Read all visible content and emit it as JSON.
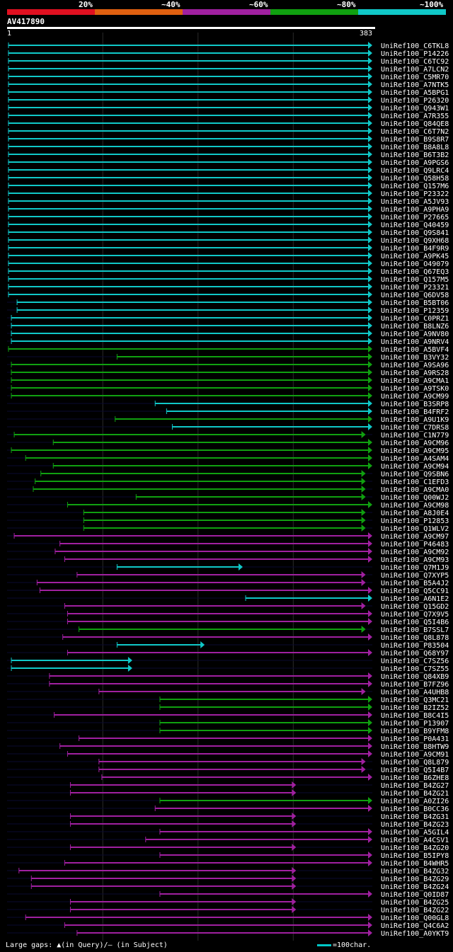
{
  "legend": {
    "labels": [
      "20%",
      "~40%",
      "~60%",
      "~80%",
      "~100%"
    ],
    "colors": [
      "#e01020",
      "#e06010",
      "#a020a0",
      "#10a010",
      "#10c8c8"
    ]
  },
  "query": {
    "id": "AV417890",
    "start": "1",
    "end": "383"
  },
  "footer": {
    "gaps_text": "Large gaps: ▲(in Query)/— (in Subject)",
    "scale_text": "=100char."
  },
  "hits": [
    {
      "id": "UniRef100_C6TKL8",
      "s": 1,
      "e": 383,
      "c": 4
    },
    {
      "id": "UniRef100_P14226",
      "s": 1,
      "e": 383,
      "c": 4
    },
    {
      "id": "UniRef100_C6TC92",
      "s": 1,
      "e": 383,
      "c": 4
    },
    {
      "id": "UniRef100_A7LCN2",
      "s": 1,
      "e": 383,
      "c": 4
    },
    {
      "id": "UniRef100_C5MR70",
      "s": 1,
      "e": 383,
      "c": 4
    },
    {
      "id": "UniRef100_A7NTK5",
      "s": 1,
      "e": 383,
      "c": 4
    },
    {
      "id": "UniRef100_A5BPG1",
      "s": 1,
      "e": 383,
      "c": 4
    },
    {
      "id": "UniRef100_P26320",
      "s": 1,
      "e": 383,
      "c": 4
    },
    {
      "id": "UniRef100_Q943W1",
      "s": 1,
      "e": 383,
      "c": 4
    },
    {
      "id": "UniRef100_A7R355",
      "s": 1,
      "e": 383,
      "c": 4
    },
    {
      "id": "UniRef100_Q84QE8",
      "s": 1,
      "e": 383,
      "c": 4
    },
    {
      "id": "UniRef100_C6T7N2",
      "s": 1,
      "e": 383,
      "c": 4
    },
    {
      "id": "UniRef100_B9S8R7",
      "s": 1,
      "e": 383,
      "c": 4
    },
    {
      "id": "UniRef100_B8A8L8",
      "s": 1,
      "e": 383,
      "c": 4
    },
    {
      "id": "UniRef100_B6T3B2",
      "s": 1,
      "e": 383,
      "c": 4
    },
    {
      "id": "UniRef100_A9PGS6",
      "s": 1,
      "e": 383,
      "c": 4
    },
    {
      "id": "UniRef100_Q9LRC4",
      "s": 1,
      "e": 383,
      "c": 4
    },
    {
      "id": "UniRef100_Q58H58",
      "s": 1,
      "e": 383,
      "c": 4
    },
    {
      "id": "UniRef100_Q157M6",
      "s": 1,
      "e": 383,
      "c": 4
    },
    {
      "id": "UniRef100_P23322",
      "s": 1,
      "e": 383,
      "c": 4
    },
    {
      "id": "UniRef100_A5JV93",
      "s": 1,
      "e": 383,
      "c": 4
    },
    {
      "id": "UniRef100_A9PHA9",
      "s": 1,
      "e": 383,
      "c": 4
    },
    {
      "id": "UniRef100_P27665",
      "s": 1,
      "e": 383,
      "c": 4
    },
    {
      "id": "UniRef100_Q40459",
      "s": 1,
      "e": 383,
      "c": 4
    },
    {
      "id": "UniRef100_Q9S841",
      "s": 1,
      "e": 383,
      "c": 4
    },
    {
      "id": "UniRef100_Q9XH68",
      "s": 1,
      "e": 383,
      "c": 4
    },
    {
      "id": "UniRef100_B4F9R9",
      "s": 1,
      "e": 383,
      "c": 4
    },
    {
      "id": "UniRef100_A9PK45",
      "s": 1,
      "e": 383,
      "c": 4
    },
    {
      "id": "UniRef100_O49079",
      "s": 1,
      "e": 383,
      "c": 4
    },
    {
      "id": "UniRef100_Q67EQ3",
      "s": 1,
      "e": 383,
      "c": 4
    },
    {
      "id": "UniRef100_Q157M5",
      "s": 1,
      "e": 383,
      "c": 4
    },
    {
      "id": "UniRef100_P23321",
      "s": 1,
      "e": 383,
      "c": 4
    },
    {
      "id": "UniRef100_Q6DV58",
      "s": 1,
      "e": 383,
      "c": 4
    },
    {
      "id": "UniRef100_B5BT06",
      "s": 10,
      "e": 383,
      "c": 4
    },
    {
      "id": "UniRef100_P12359",
      "s": 10,
      "e": 383,
      "c": 4
    },
    {
      "id": "UniRef100_C0PRZ1",
      "s": 4,
      "e": 383,
      "c": 4
    },
    {
      "id": "UniRef100_B8LNZ6",
      "s": 4,
      "e": 383,
      "c": 4
    },
    {
      "id": "UniRef100_A9NV80",
      "s": 4,
      "e": 383,
      "c": 4
    },
    {
      "id": "UniRef100_A9NRV4",
      "s": 4,
      "e": 383,
      "c": 4
    },
    {
      "id": "UniRef100_A5BVF4",
      "s": 1,
      "e": 383,
      "c": 3
    },
    {
      "id": "UniRef100_B3VY32",
      "s": 115,
      "e": 383,
      "c": 3
    },
    {
      "id": "UniRef100_A9SA96",
      "s": 4,
      "e": 383,
      "c": 3
    },
    {
      "id": "UniRef100_A9RS28",
      "s": 4,
      "e": 383,
      "c": 3
    },
    {
      "id": "UniRef100_A9CMA1",
      "s": 4,
      "e": 383,
      "c": 3
    },
    {
      "id": "UniRef100_A9TSK0",
      "s": 4,
      "e": 383,
      "c": 3
    },
    {
      "id": "UniRef100_A9CM99",
      "s": 4,
      "e": 383,
      "c": 3
    },
    {
      "id": "UniRef100_B3SRP8",
      "s": 155,
      "e": 383,
      "c": 4
    },
    {
      "id": "UniRef100_B4FRF2",
      "s": 167,
      "e": 383,
      "c": 4
    },
    {
      "id": "UniRef100_A9U1K9",
      "s": 113,
      "e": 383,
      "c": 3
    },
    {
      "id": "UniRef100_C7DRS8",
      "s": 173,
      "e": 383,
      "c": 4
    },
    {
      "id": "UniRef100_C1N779",
      "s": 7,
      "e": 376,
      "c": 3
    },
    {
      "id": "UniRef100_A9CM96",
      "s": 48,
      "e": 383,
      "c": 3
    },
    {
      "id": "UniRef100_A9CM95",
      "s": 4,
      "e": 383,
      "c": 3
    },
    {
      "id": "UniRef100_A4SAM4",
      "s": 19,
      "e": 383,
      "c": 3
    },
    {
      "id": "UniRef100_A9CM94",
      "s": 48,
      "e": 383,
      "c": 3
    },
    {
      "id": "UniRef100_Q9SBN6",
      "s": 35,
      "e": 376,
      "c": 3
    },
    {
      "id": "UniRef100_C1EFD3",
      "s": 29,
      "e": 376,
      "c": 3
    },
    {
      "id": "UniRef100_A9CMA0",
      "s": 27,
      "e": 376,
      "c": 3
    },
    {
      "id": "UniRef100_Q00WJ2",
      "s": 135,
      "e": 376,
      "c": 3
    },
    {
      "id": "UniRef100_A9CM98",
      "s": 63,
      "e": 383,
      "c": 3
    },
    {
      "id": "UniRef100_A8J0E4",
      "s": 80,
      "e": 376,
      "c": 3
    },
    {
      "id": "UniRef100_P12853",
      "s": 80,
      "e": 376,
      "c": 3
    },
    {
      "id": "UniRef100_Q1WLV2",
      "s": 80,
      "e": 376,
      "c": 3
    },
    {
      "id": "UniRef100_A9CM97",
      "s": 7,
      "e": 383,
      "c": 2
    },
    {
      "id": "UniRef100_P46483",
      "s": 55,
      "e": 383,
      "c": 2
    },
    {
      "id": "UniRef100_A9CM92",
      "s": 50,
      "e": 383,
      "c": 2
    },
    {
      "id": "UniRef100_A9CM93",
      "s": 60,
      "e": 383,
      "c": 2
    },
    {
      "id": "UniRef100_Q7M1J9",
      "s": 115,
      "e": 247,
      "c": 4
    },
    {
      "id": "UniRef100_Q7XYP5",
      "s": 73,
      "e": 376,
      "c": 2
    },
    {
      "id": "UniRef100_B5A4J2",
      "s": 31,
      "e": 376,
      "c": 2
    },
    {
      "id": "UniRef100_Q5CC91",
      "s": 34,
      "e": 383,
      "c": 2
    },
    {
      "id": "UniRef100_A6N1E2",
      "s": 250,
      "e": 383,
      "c": 4
    },
    {
      "id": "UniRef100_Q15GD2",
      "s": 60,
      "e": 376,
      "c": 2
    },
    {
      "id": "UniRef100_Q7X9V5",
      "s": 63,
      "e": 383,
      "c": 2
    },
    {
      "id": "UniRef100_Q5I4B6",
      "s": 63,
      "e": 383,
      "c": 2
    },
    {
      "id": "UniRef100_B7SSL7",
      "s": 75,
      "e": 376,
      "c": 3
    },
    {
      "id": "UniRef100_Q8L878",
      "s": 58,
      "e": 383,
      "c": 2
    },
    {
      "id": "UniRef100_P83504",
      "s": 115,
      "e": 207,
      "c": 4
    },
    {
      "id": "UniRef100_Q68Y97",
      "s": 63,
      "e": 383,
      "c": 2
    },
    {
      "id": "UniRef100_C7SZ56",
      "s": 4,
      "e": 131,
      "c": 4
    },
    {
      "id": "UniRef100_C7SZ55",
      "s": 4,
      "e": 131,
      "c": 4
    },
    {
      "id": "UniRef100_Q84XB9",
      "s": 44,
      "e": 383,
      "c": 2
    },
    {
      "id": "UniRef100_B7FZ96",
      "s": 44,
      "e": 383,
      "c": 2
    },
    {
      "id": "UniRef100_A4UHB8",
      "s": 96,
      "e": 376,
      "c": 2
    },
    {
      "id": "UniRef100_Q3MC21",
      "s": 160,
      "e": 383,
      "c": 3
    },
    {
      "id": "UniRef100_B2IZ52",
      "s": 160,
      "e": 383,
      "c": 3
    },
    {
      "id": "UniRef100_B8C4I5",
      "s": 49,
      "e": 383,
      "c": 2
    },
    {
      "id": "UniRef100_P13907",
      "s": 160,
      "e": 383,
      "c": 3
    },
    {
      "id": "UniRef100_B9YFM8",
      "s": 160,
      "e": 383,
      "c": 3
    },
    {
      "id": "UniRef100_P0A431",
      "s": 75,
      "e": 383,
      "c": 2
    },
    {
      "id": "UniRef100_B8HTW9",
      "s": 55,
      "e": 383,
      "c": 2
    },
    {
      "id": "UniRef100_A9CM91",
      "s": 63,
      "e": 383,
      "c": 2
    },
    {
      "id": "UniRef100_Q8L879",
      "s": 96,
      "e": 376,
      "c": 2
    },
    {
      "id": "UniRef100_Q5I4B7",
      "s": 96,
      "e": 376,
      "c": 2
    },
    {
      "id": "UniRef100_B6ZHE8",
      "s": 99,
      "e": 383,
      "c": 2
    },
    {
      "id": "UniRef100_B4ZG27",
      "s": 66,
      "e": 303,
      "c": 2
    },
    {
      "id": "UniRef100_B4ZG21",
      "s": 66,
      "e": 303,
      "c": 2
    },
    {
      "id": "UniRef100_A0ZI26",
      "s": 160,
      "e": 383,
      "c": 3
    },
    {
      "id": "UniRef100_B0CC36",
      "s": 155,
      "e": 383,
      "c": 2
    },
    {
      "id": "UniRef100_B4ZG31",
      "s": 66,
      "e": 303,
      "c": 2
    },
    {
      "id": "UniRef100_B4ZG23",
      "s": 66,
      "e": 303,
      "c": 2
    },
    {
      "id": "UniRef100_A5GIL4",
      "s": 160,
      "e": 383,
      "c": 2
    },
    {
      "id": "UniRef100_A4CSV1",
      "s": 145,
      "e": 383,
      "c": 2
    },
    {
      "id": "UniRef100_B4ZG20",
      "s": 66,
      "e": 303,
      "c": 2
    },
    {
      "id": "UniRef100_B5IPY8",
      "s": 160,
      "e": 383,
      "c": 2
    },
    {
      "id": "UniRef100_B4WHR5",
      "s": 60,
      "e": 383,
      "c": 2
    },
    {
      "id": "UniRef100_B4ZG32",
      "s": 12,
      "e": 303,
      "c": 2
    },
    {
      "id": "UniRef100_B4ZG29",
      "s": 25,
      "e": 303,
      "c": 2
    },
    {
      "id": "UniRef100_B4ZG24",
      "s": 25,
      "e": 303,
      "c": 2
    },
    {
      "id": "UniRef100_Q0ID87",
      "s": 160,
      "e": 383,
      "c": 2
    },
    {
      "id": "UniRef100_B4ZG25",
      "s": 66,
      "e": 303,
      "c": 2
    },
    {
      "id": "UniRef100_B4ZG22",
      "s": 66,
      "e": 303,
      "c": 2
    },
    {
      "id": "UniRef100_Q00GL8",
      "s": 19,
      "e": 383,
      "c": 2
    },
    {
      "id": "UniRef100_Q4C6A2",
      "s": 60,
      "e": 383,
      "c": 2
    },
    {
      "id": "UniRef100_A0YKT9",
      "s": 73,
      "e": 383,
      "c": 2
    }
  ]
}
